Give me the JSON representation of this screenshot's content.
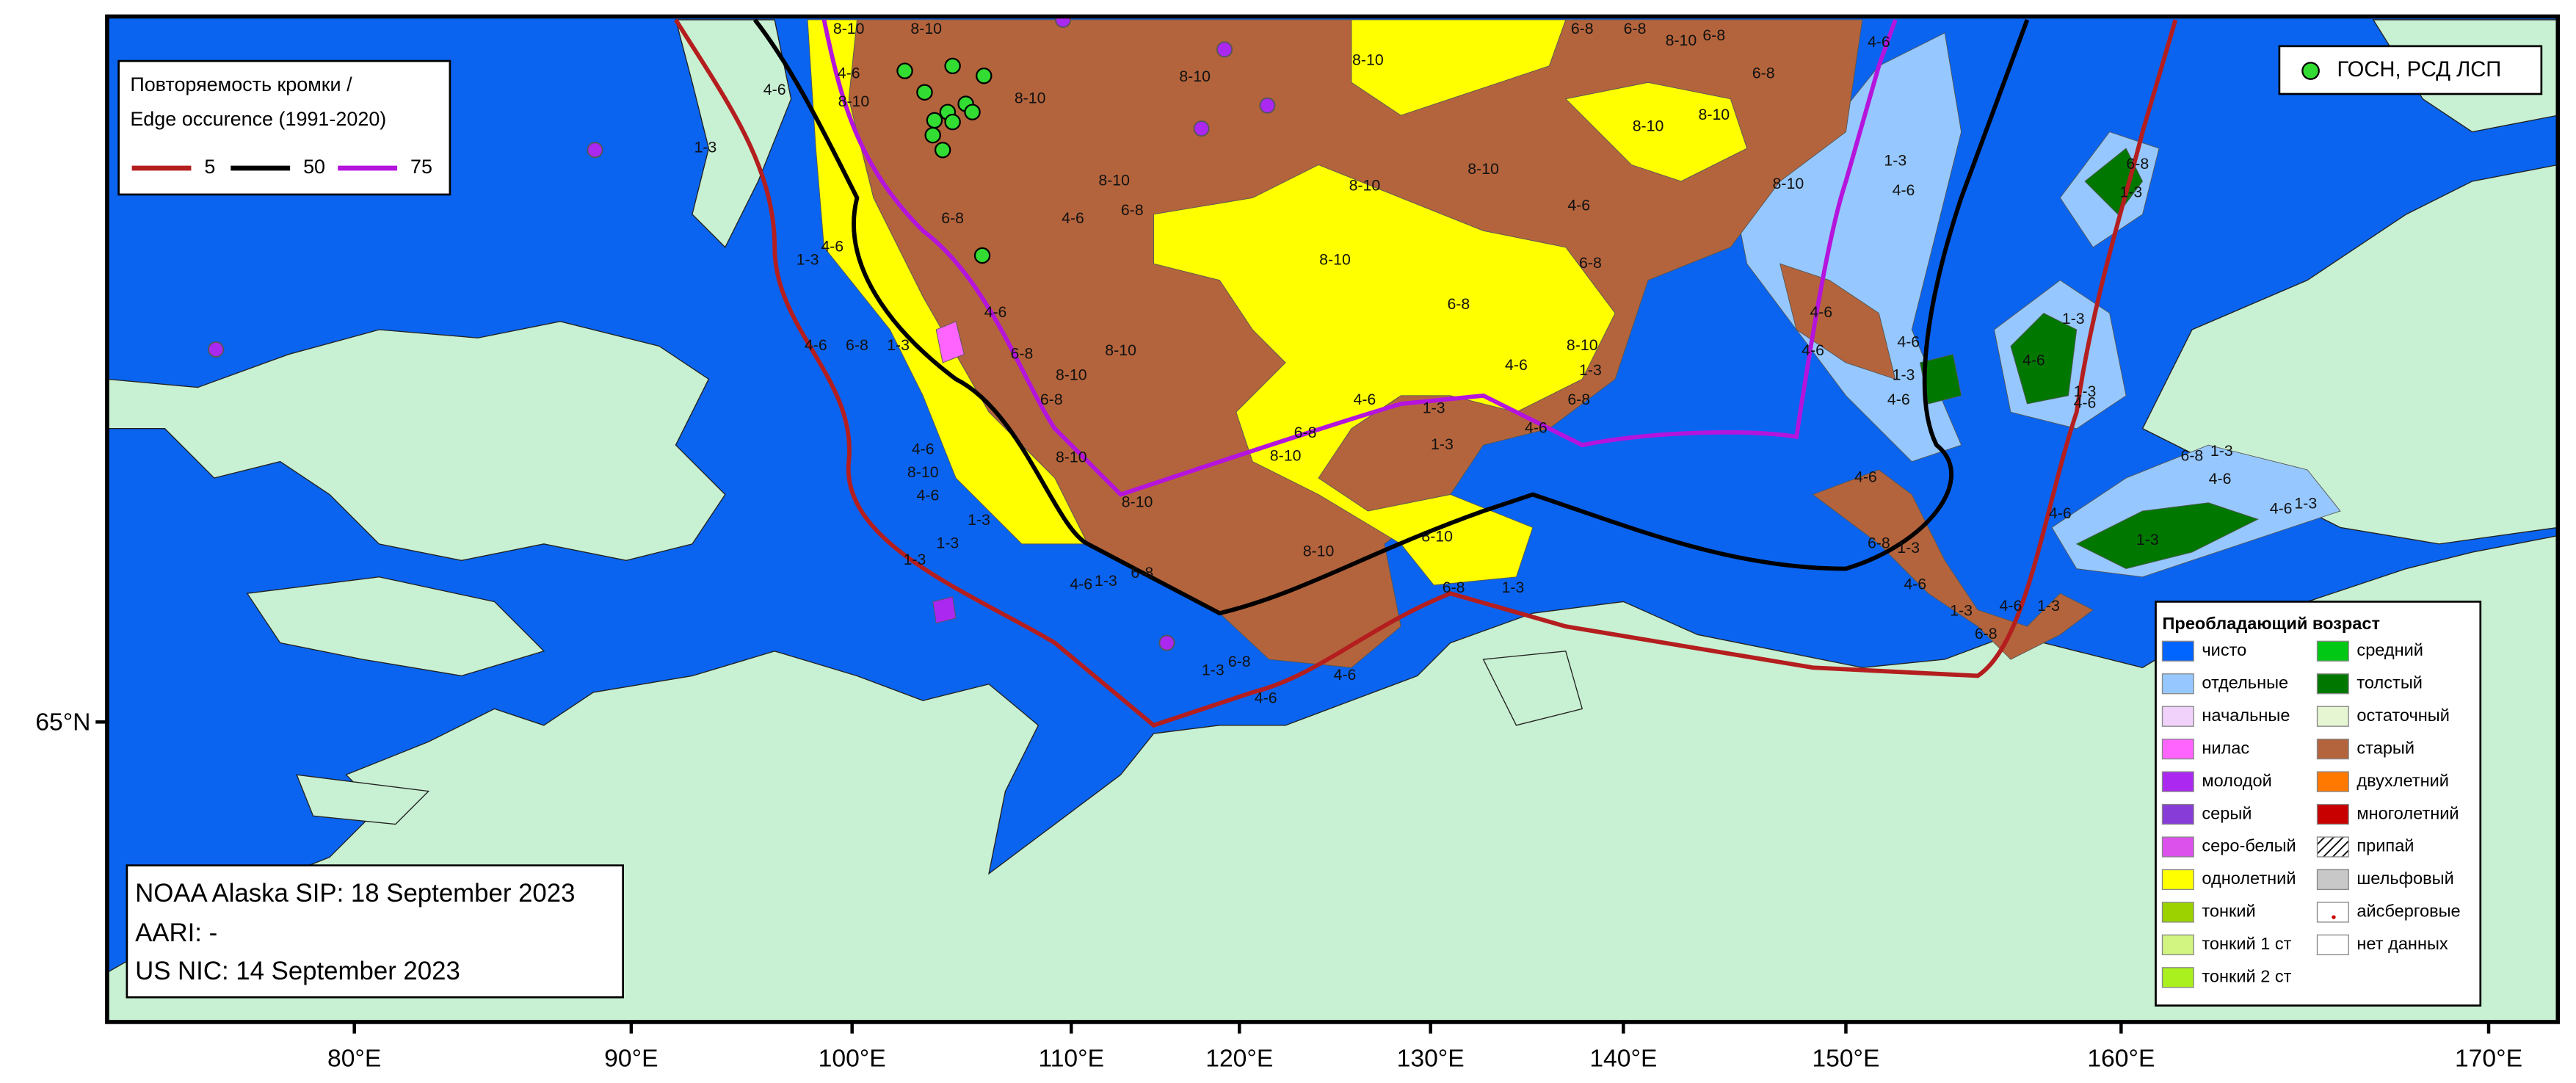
{
  "edge_legend": {
    "title_lines": [
      "Повторяемость кромки /",
      "Edge occurence (1991-2020)"
    ],
    "items": [
      {
        "label": "5",
        "color": "#b41e1e"
      },
      {
        "label": "50",
        "color": "#000000"
      },
      {
        "label": "75",
        "color": "#b414dc"
      }
    ]
  },
  "station_legend": {
    "label": "ГОСН, РСД ЛСП",
    "color": "#32dc32"
  },
  "age_legend": {
    "title": "Преобладающий возраст",
    "items": [
      {
        "label": "чисто",
        "color": "#0064ff"
      },
      {
        "label": "отдельные",
        "color": "#96c8ff"
      },
      {
        "label": "начальные",
        "color": "#f0d2fa"
      },
      {
        "label": "нилас",
        "color": "#ff64ff"
      },
      {
        "label": "молодой",
        "color": "#aa28f0"
      },
      {
        "label": "серый",
        "color": "#873cd7"
      },
      {
        "label": "серо-белый",
        "color": "#dc50eb"
      },
      {
        "label": "однолетний",
        "color": "#ffff00"
      },
      {
        "label": "тонкий",
        "color": "#9bd200"
      },
      {
        "label": "тонкий 1 ст",
        "color": "#d2f582"
      },
      {
        "label": "тонкий 2 ст",
        "color": "#aaf01e"
      },
      {
        "label": "средний",
        "color": "#00c814"
      },
      {
        "label": "толстый",
        "color": "#007800"
      },
      {
        "label": "остаточный",
        "color": "#e6f5d2"
      },
      {
        "label": "старый",
        "color": "#b4643c"
      },
      {
        "label": "двухлетний",
        "color": "#ff7800"
      },
      {
        "label": "многолетний",
        "color": "#c80000"
      },
      {
        "label": "припай",
        "color": "hatch"
      },
      {
        "label": "шельфовый",
        "color": "#c8c8c8"
      },
      {
        "label": "айсберговые",
        "color": "iceberg"
      },
      {
        "label": "нет данных",
        "color": "#ffffff"
      }
    ]
  },
  "info_box": {
    "lines": [
      "NOAA Alaska SIP: 18 September 2023",
      "AARI: -",
      "US NIC: 14 September 2023"
    ]
  },
  "longitude_labels": [
    "80°E",
    "90°E",
    "100°E",
    "110°E",
    "120°E",
    "130°E",
    "140°E",
    "150°E",
    "160°E",
    "170°E"
  ],
  "latitude_labels": [
    "65°N"
  ],
  "map_labels": [
    "8-10",
    "8-10",
    "8-10",
    "8-10",
    "8-10",
    "8-10",
    "8-10",
    "8-10",
    "6-8",
    "6-8",
    "8-10",
    "6-8",
    "8-10",
    "8-10",
    "6-8",
    "4-6",
    "1-3",
    "4-6",
    "8-10",
    "6-8",
    "4-6",
    "6-8",
    "8-10",
    "8-10",
    "6-8",
    "4-6",
    "6-8",
    "8-10",
    "1-3",
    "4-6",
    "6-8",
    "4-6",
    "1-3",
    "4-6",
    "6-8",
    "8-10",
    "1-3",
    "8-10",
    "8-10",
    "8-10",
    "1-3",
    "6-8",
    "6-8",
    "4-6",
    "1-3",
    "4-6",
    "1-3",
    "1-3",
    "4-6",
    "4-6",
    "4-6",
    "1-3",
    "4-6",
    "4-6",
    "6-8",
    "1-3",
    "4-6",
    "1-3",
    "4-6",
    "6-8",
    "1-3",
    "6-8",
    "1-3",
    "1-3",
    "4-6",
    "1-3",
    "4-6",
    "6-8",
    "1-3",
    "4-6",
    "4-6",
    "1-3",
    "4-6",
    "1-3",
    "4-6",
    "1-3",
    "4-6",
    "6-8",
    "1-3",
    "4-6",
    "8-10",
    "4-6",
    "1-3",
    "4-6",
    "1-3",
    "6-8",
    "8-10",
    "4-6",
    "6-8",
    "8-10",
    "6-8",
    "4-6",
    "8-10",
    "1-3",
    "4-6"
  ]
}
